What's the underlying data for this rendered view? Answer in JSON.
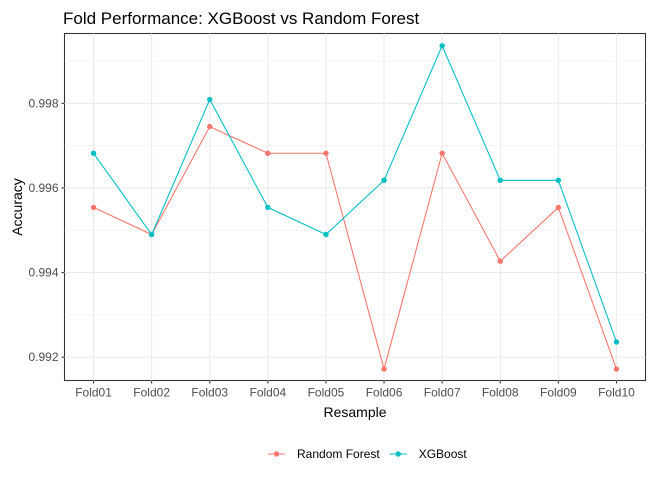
{
  "chart_data": {
    "type": "line",
    "title": "Fold Performance: XGBoost vs Random Forest",
    "xlabel": "Resample",
    "ylabel": "Accuracy",
    "categories": [
      "Fold01",
      "Fold02",
      "Fold03",
      "Fold04",
      "Fold05",
      "Fold06",
      "Fold07",
      "Fold08",
      "Fold09",
      "Fold10"
    ],
    "ylim": [
      0.99145,
      0.99965
    ],
    "yticks": [
      0.992,
      0.994,
      0.996,
      0.998
    ],
    "ytick_labels": [
      "0.992",
      "0.994",
      "0.996",
      "0.998"
    ],
    "grid": true,
    "legend_position": "bottom",
    "series": [
      {
        "name": "Random Forest",
        "color": "#F8766D",
        "values": [
          0.99554,
          0.9949,
          0.99745,
          0.99682,
          0.99682,
          0.99172,
          0.99682,
          0.99427,
          0.99554,
          0.99172
        ]
      },
      {
        "name": "XGBoost",
        "color": "#00BFC4",
        "values": [
          0.99682,
          0.9949,
          0.99809,
          0.99554,
          0.9949,
          0.99618,
          0.99936,
          0.99618,
          0.99618,
          0.99236
        ]
      }
    ]
  }
}
